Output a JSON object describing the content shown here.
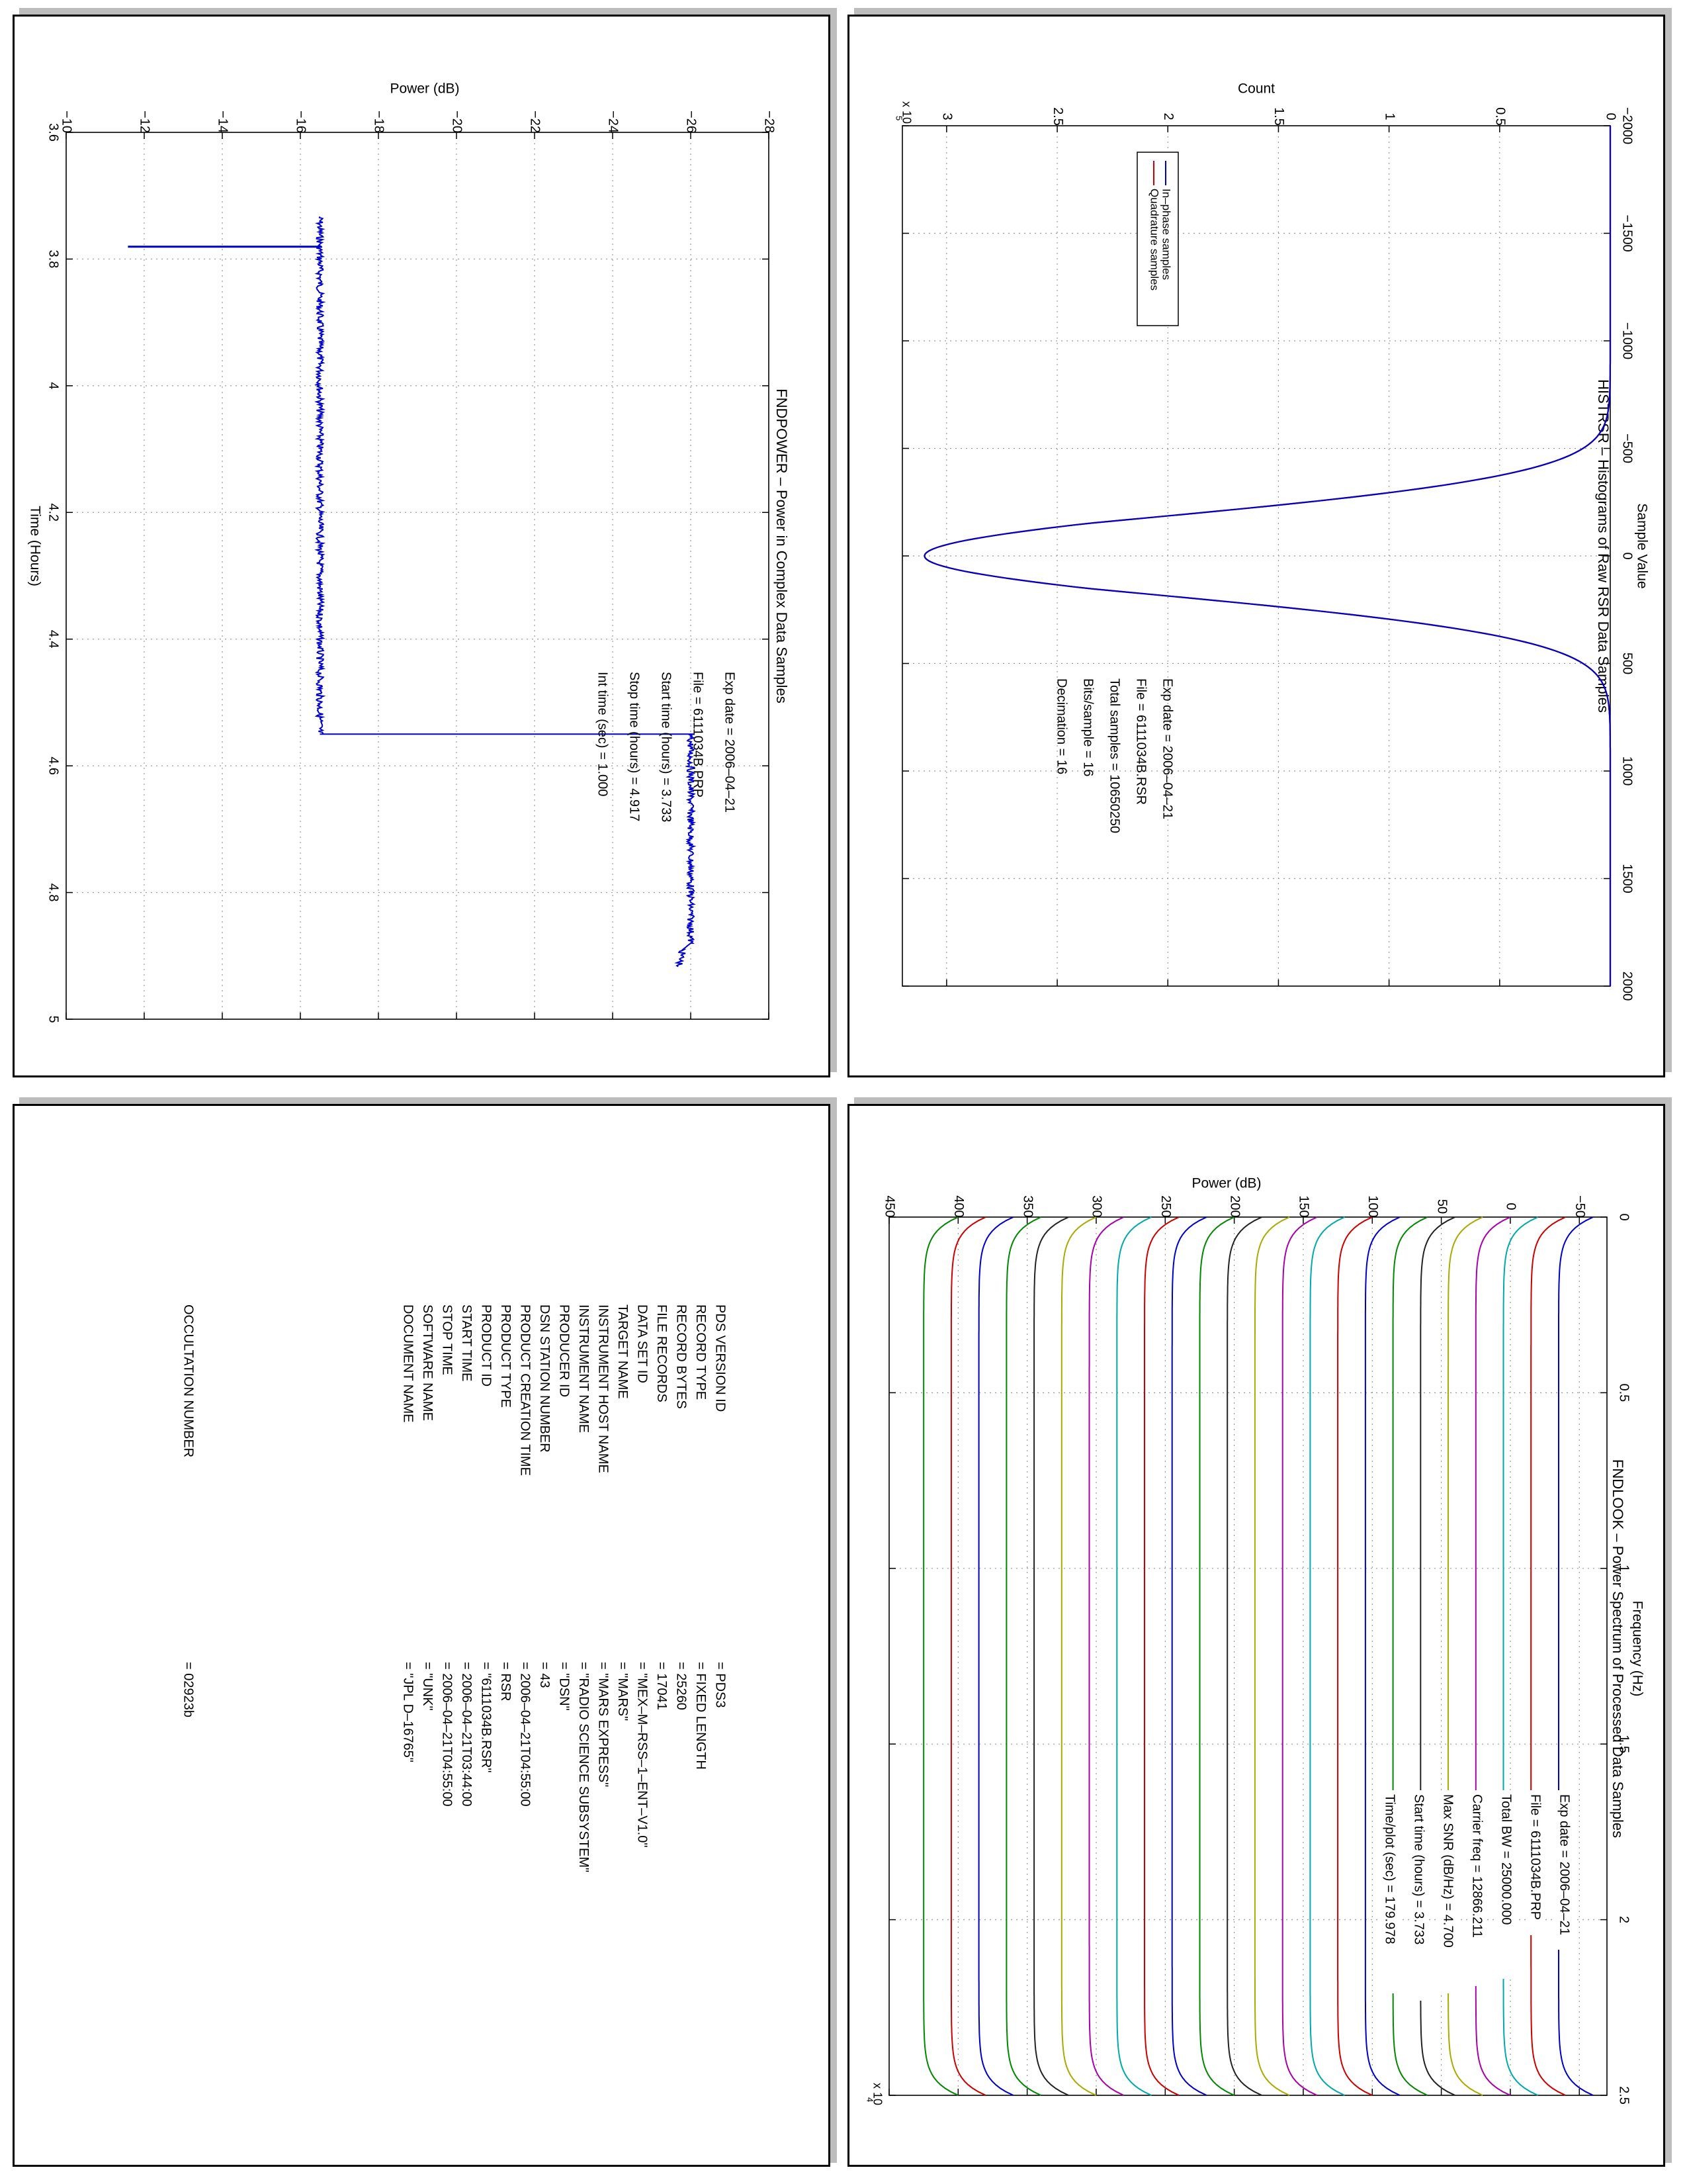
{
  "histogram": {
    "title": "HISTRSR – Histograms of Raw RSR Data Samples",
    "xlabel": "Sample Value",
    "ylabel": "Count",
    "exponent": "x 10",
    "exponent_power": "5",
    "legend": [
      "In–phase samples",
      "Quadrature samples"
    ],
    "info": [
      "Exp date = 2006–04–21",
      "File = 6111034B.RSR",
      "Total samples = 10650250",
      "Bits/sample  =      16",
      "Decimation   =      16"
    ]
  },
  "power": {
    "title": "FNDPOWER – Power in Complex Data Samples",
    "xlabel": "Time (Hours)",
    "ylabel": "Power (dB)",
    "info": [
      "Exp date = 2006–04–21",
      "File = 6111034B.PRP",
      "Start time (hours) =   3.733",
      "Stop time (hours) =   4.917",
      "Int time (sec) =      1.000"
    ]
  },
  "spectrum": {
    "title": "FNDLOOK – Power Spectrum of Processed Data Samples",
    "xlabel": "Frequency (Hz)",
    "ylabel": "Power (dB)",
    "exponent": "x 10",
    "exponent_power": "4",
    "info": [
      "Exp date = 2006–04–21",
      "File = 6111034B.PRP",
      "Total BW =      25000.000",
      "Carrier freq =   12866.211",
      "Max SNR (dB/Hz) =     4.700",
      "Start time (hours) =   3.733",
      "Time/plot (sec) =   179.978"
    ]
  },
  "pds_labels": {
    "rows": [
      {
        "name": "PDS VERSION ID",
        "value": "= PDS3"
      },
      {
        "name": "RECORD TYPE",
        "value": "= FIXED LENGTH"
      },
      {
        "name": "RECORD BYTES",
        "value": "= 25260"
      },
      {
        "name": "FILE RECORDS",
        "value": "= 17041"
      },
      {
        "name": "DATA SET ID",
        "value": "= \"MEX–M–RSS–1–ENT–V1.0\""
      },
      {
        "name": "TARGET NAME",
        "value": "= \"MARS\""
      },
      {
        "name": "INSTRUMENT HOST NAME",
        "value": "= \"MARS EXPRESS\""
      },
      {
        "name": "INSTRUMENT NAME",
        "value": "= \"RADIO SCIENCE SUBSYSTEM\""
      },
      {
        "name": "PRODUCER ID",
        "value": "= \"DSN\""
      },
      {
        "name": "DSN STATION NUMBER",
        "value": "= 43"
      },
      {
        "name": "PRODUCT CREATION TIME",
        "value": "= 2006–04–21T04:55:00"
      },
      {
        "name": "PRODUCT TYPE",
        "value": "= RSR"
      },
      {
        "name": "PRODUCT ID",
        "value": "= \"6111034B.RSR\""
      },
      {
        "name": "START TIME",
        "value": "= 2006–04–21T03:44:00"
      },
      {
        "name": "STOP TIME",
        "value": "= 2006–04–21T04:55:00"
      },
      {
        "name": "SOFTWARE NAME",
        "value": "= \"UNK\""
      },
      {
        "name": "DOCUMENT NAME",
        "value": "= \"JPL D–16765\""
      }
    ],
    "occultation": {
      "name": "OCCULTATION NUMBER",
      "value": "= 02923b"
    }
  },
  "chart_data": [
    {
      "type": "line",
      "title": "HISTRSR – Histograms of Raw RSR Data Samples",
      "xlabel": "Sample Value",
      "ylabel": "Count",
      "xlim": [
        -2000,
        2000
      ],
      "ylim": [
        0,
        320000
      ],
      "xticks": [
        "−2000",
        "−1500",
        "−1000",
        "−500",
        "0",
        "500",
        "1000",
        "1500",
        "2000"
      ],
      "yticks": [
        "0",
        "0.5",
        "1",
        "1.5",
        "2",
        "2.5",
        "3"
      ],
      "y_scale_note": "x 10^5",
      "grid": true,
      "legend_position": "top-right",
      "series": [
        {
          "name": "In–phase samples",
          "color": "#0000cc",
          "peak": 310000,
          "sigma": 205
        },
        {
          "name": "Quadrature samples",
          "color": "#cc0000",
          "peak": 310000,
          "sigma": 205
        }
      ]
    },
    {
      "type": "line",
      "title": "FNDPOWER – Power in Complex Data Samples",
      "xlabel": "Time (Hours)",
      "ylabel": "Power (dB)",
      "xlim": [
        3.6,
        5.0
      ],
      "ylim": [
        -28,
        -10
      ],
      "xticks": [
        "3.6",
        "3.8",
        "4",
        "4.2",
        "4.4",
        "4.6",
        "4.8",
        "5"
      ],
      "yticks": [
        "−28",
        "−26",
        "−24",
        "−22",
        "−20",
        "−18",
        "−16",
        "−14",
        "−12",
        "−10"
      ],
      "grid": true,
      "series": [
        {
          "name": "",
          "color": "#0000cc",
          "x": [
            3.733,
            3.78,
            3.78,
            3.781,
            3.781,
            4.55,
            4.55,
            4.88,
            4.89,
            4.917
          ],
          "y": [
            -16.5,
            -16.5,
            -11.6,
            -11.6,
            -16.5,
            -16.5,
            -26.0,
            -26.0,
            -25.8,
            -25.7
          ]
        }
      ]
    },
    {
      "type": "line",
      "title": "FNDLOOK – Power Spectrum of Processed Data Samples",
      "xlabel": "Frequency (Hz)",
      "ylabel": "Power (dB)",
      "xlim": [
        0,
        25000
      ],
      "ylim": [
        -70,
        450
      ],
      "xticks": [
        "0",
        "0.5",
        "1",
        "1.5",
        "2",
        "2.5"
      ],
      "x_scale_note": "x 10^4",
      "yticks": [
        "−50",
        "0",
        "50",
        "100",
        "150",
        "200",
        "250",
        "300",
        "350",
        "400",
        "450"
      ],
      "grid": true,
      "traces": {
        "count": 24,
        "baseline_first": -60,
        "step": 20,
        "rise_db": 25,
        "colors": [
          "#0000cc",
          "#cc0000",
          "#00aaaa",
          "#aa00aa",
          "#aaaa00",
          "#222222",
          "#008800",
          "#0000cc",
          "#cc0000",
          "#00aaaa",
          "#aa00aa",
          "#aaaa00",
          "#222222",
          "#008800",
          "#0000cc",
          "#cc0000",
          "#00aaaa",
          "#aa00aa",
          "#aaaa00",
          "#222222",
          "#008800",
          "#0000cc",
          "#cc0000",
          "#008800"
        ]
      }
    }
  ]
}
